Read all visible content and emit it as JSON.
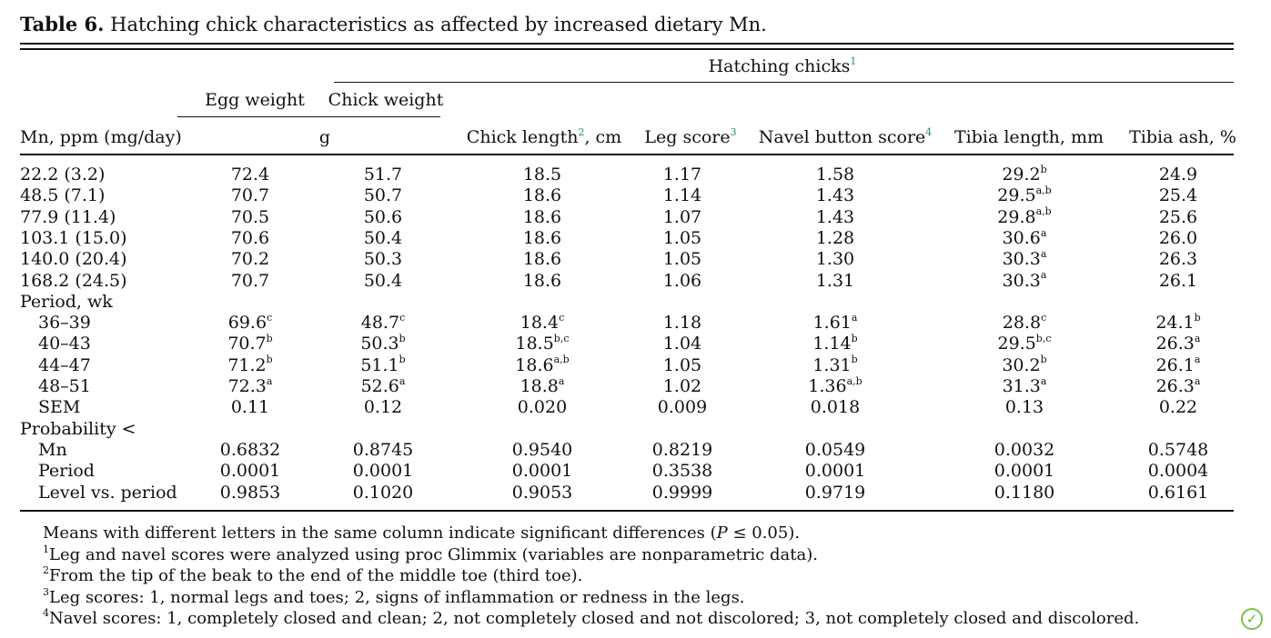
{
  "caption": {
    "label": "Table 6.",
    "text": "Hatching chick characteristics as affected by increased dietary Mn."
  },
  "headers": {
    "group": "Hatching chicks",
    "group_sup": "1",
    "egg_weight": "Egg weight",
    "chick_weight": "Chick weight",
    "unit_g": "g",
    "mn": "Mn, ppm (mg/day)",
    "chick_length": "Chick length",
    "chick_length_sup": "2",
    "chick_length_unit": ", cm",
    "leg_score": "Leg score",
    "leg_score_sup": "3",
    "navel": "Navel button score",
    "navel_sup": "4",
    "tibia_length": "Tibia length, mm",
    "tibia_ash": "Tibia ash, %"
  },
  "rows": [
    {
      "label": "22.2 (3.2)",
      "indent": false,
      "cells": [
        [
          "72.4",
          ""
        ],
        [
          "51.7",
          ""
        ],
        [
          "18.5",
          ""
        ],
        [
          "1.17",
          ""
        ],
        [
          "1.58",
          ""
        ],
        [
          "29.2",
          "b"
        ],
        [
          "24.9",
          ""
        ]
      ]
    },
    {
      "label": "48.5 (7.1)",
      "indent": false,
      "cells": [
        [
          "70.7",
          ""
        ],
        [
          "50.7",
          ""
        ],
        [
          "18.6",
          ""
        ],
        [
          "1.14",
          ""
        ],
        [
          "1.43",
          ""
        ],
        [
          "29.5",
          "a,b"
        ],
        [
          "25.4",
          ""
        ]
      ]
    },
    {
      "label": "77.9 (11.4)",
      "indent": false,
      "cells": [
        [
          "70.5",
          ""
        ],
        [
          "50.6",
          ""
        ],
        [
          "18.6",
          ""
        ],
        [
          "1.07",
          ""
        ],
        [
          "1.43",
          ""
        ],
        [
          "29.8",
          "a,b"
        ],
        [
          "25.6",
          ""
        ]
      ]
    },
    {
      "label": "103.1 (15.0)",
      "indent": false,
      "cells": [
        [
          "70.6",
          ""
        ],
        [
          "50.4",
          ""
        ],
        [
          "18.6",
          ""
        ],
        [
          "1.05",
          ""
        ],
        [
          "1.28",
          ""
        ],
        [
          "30.6",
          "a"
        ],
        [
          "26.0",
          ""
        ]
      ]
    },
    {
      "label": "140.0 (20.4)",
      "indent": false,
      "cells": [
        [
          "70.2",
          ""
        ],
        [
          "50.3",
          ""
        ],
        [
          "18.6",
          ""
        ],
        [
          "1.05",
          ""
        ],
        [
          "1.30",
          ""
        ],
        [
          "30.3",
          "a"
        ],
        [
          "26.3",
          ""
        ]
      ]
    },
    {
      "label": "168.2 (24.5)",
      "indent": false,
      "cells": [
        [
          "70.7",
          ""
        ],
        [
          "50.4",
          ""
        ],
        [
          "18.6",
          ""
        ],
        [
          "1.06",
          ""
        ],
        [
          "1.31",
          ""
        ],
        [
          "30.3",
          "a"
        ],
        [
          "26.1",
          ""
        ]
      ]
    },
    {
      "label": "Period, wk",
      "indent": false,
      "cells": []
    },
    {
      "label": "36–39",
      "indent": true,
      "cells": [
        [
          "69.6",
          "c"
        ],
        [
          "48.7",
          "c"
        ],
        [
          "18.4",
          "c"
        ],
        [
          "1.18",
          ""
        ],
        [
          "1.61",
          "a"
        ],
        [
          "28.8",
          "c"
        ],
        [
          "24.1",
          "b"
        ]
      ]
    },
    {
      "label": "40–43",
      "indent": true,
      "cells": [
        [
          "70.7",
          "b"
        ],
        [
          "50.3",
          "b"
        ],
        [
          "18.5",
          "b,c"
        ],
        [
          "1.04",
          ""
        ],
        [
          "1.14",
          "b"
        ],
        [
          "29.5",
          "b,c"
        ],
        [
          "26.3",
          "a"
        ]
      ]
    },
    {
      "label": "44–47",
      "indent": true,
      "cells": [
        [
          "71.2",
          "b"
        ],
        [
          "51.1",
          "b"
        ],
        [
          "18.6",
          "a,b"
        ],
        [
          "1.05",
          ""
        ],
        [
          "1.31",
          "b"
        ],
        [
          "30.2",
          "b"
        ],
        [
          "26.1",
          "a"
        ]
      ]
    },
    {
      "label": "48–51",
      "indent": true,
      "cells": [
        [
          "72.3",
          "a"
        ],
        [
          "52.6",
          "a"
        ],
        [
          "18.8",
          "a"
        ],
        [
          "1.02",
          ""
        ],
        [
          "1.36",
          "a,b"
        ],
        [
          "31.3",
          "a"
        ],
        [
          "26.3",
          "a"
        ]
      ]
    },
    {
      "label": "SEM",
      "indent": true,
      "cells": [
        [
          "0.11",
          ""
        ],
        [
          "0.12",
          ""
        ],
        [
          "0.020",
          ""
        ],
        [
          "0.009",
          ""
        ],
        [
          "0.018",
          ""
        ],
        [
          "0.13",
          ""
        ],
        [
          "0.22",
          ""
        ]
      ]
    },
    {
      "label": "Probability <",
      "indent": false,
      "cells": []
    },
    {
      "label": "Mn",
      "indent": true,
      "cells": [
        [
          "0.6832",
          ""
        ],
        [
          "0.8745",
          ""
        ],
        [
          "0.9540",
          ""
        ],
        [
          "0.8219",
          ""
        ],
        [
          "0.0549",
          ""
        ],
        [
          "0.0032",
          ""
        ],
        [
          "0.5748",
          ""
        ]
      ]
    },
    {
      "label": "Period",
      "indent": true,
      "cells": [
        [
          "0.0001",
          ""
        ],
        [
          "0.0001",
          ""
        ],
        [
          "0.0001",
          ""
        ],
        [
          "0.3538",
          ""
        ],
        [
          "0.0001",
          ""
        ],
        [
          "0.0001",
          ""
        ],
        [
          "0.0004",
          ""
        ]
      ]
    },
    {
      "label": "Level vs. period",
      "indent": true,
      "cells": [
        [
          "0.9853",
          ""
        ],
        [
          "0.1020",
          ""
        ],
        [
          "0.9053",
          ""
        ],
        [
          "0.9999",
          ""
        ],
        [
          "0.9719",
          ""
        ],
        [
          "0.1180",
          ""
        ],
        [
          "0.6161",
          ""
        ]
      ]
    }
  ],
  "notes": {
    "n0": "Means with different letters in the same column indicate significant differences (",
    "n0_p": "P",
    "n0_end": " ≤ 0.05).",
    "n1_sup": "1",
    "n1": "Leg and navel scores were analyzed using proc Glimmix (variables are nonparametric data).",
    "n2_sup": "2",
    "n2": "From the tip of the beak to the end of the middle toe (third toe).",
    "n3_sup": "3",
    "n3": "Leg scores: 1, normal legs and toes; 2, signs of inflammation or redness in the legs.",
    "n4_sup": "4",
    "n4": "Navel scores: 1, completely closed and clean; 2, not completely closed and not discolored; 3, not completely closed and discolored."
  },
  "logo_icon": "leaf-check-icon"
}
